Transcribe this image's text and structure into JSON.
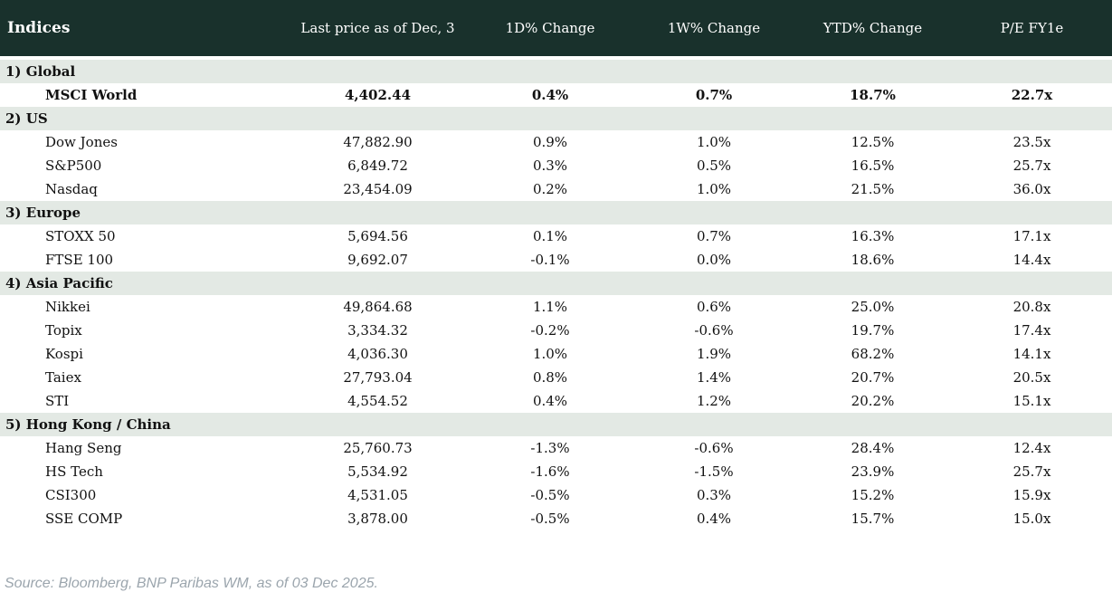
{
  "table": {
    "title": "Indices",
    "columns": {
      "price": "Last price as of Dec, 3",
      "d1": "1D% Change",
      "w1": "1W% Change",
      "ytd": "YTD% Change",
      "pe": "P/E FY1e"
    },
    "sections": [
      {
        "label": "1) Global",
        "rows": [
          {
            "name": "MSCI World",
            "bold": true,
            "price": "4,402.44",
            "d1": "0.4%",
            "w1": "0.7%",
            "ytd": "18.7%",
            "pe": "22.7x"
          }
        ]
      },
      {
        "label": "2) US",
        "rows": [
          {
            "name": "Dow Jones",
            "price": "47,882.90",
            "d1": "0.9%",
            "w1": "1.0%",
            "ytd": "12.5%",
            "pe": "23.5x"
          },
          {
            "name": "S&P500",
            "price": "6,849.72",
            "d1": "0.3%",
            "w1": "0.5%",
            "ytd": "16.5%",
            "pe": "25.7x"
          },
          {
            "name": "Nasdaq",
            "price": "23,454.09",
            "d1": "0.2%",
            "w1": "1.0%",
            "ytd": "21.5%",
            "pe": "36.0x"
          }
        ]
      },
      {
        "label": "3) Europe",
        "rows": [
          {
            "name": "STOXX 50",
            "price": "5,694.56",
            "d1": "0.1%",
            "w1": "0.7%",
            "ytd": "16.3%",
            "pe": "17.1x"
          },
          {
            "name": "FTSE 100",
            "price": "9,692.07",
            "d1": "-0.1%",
            "w1": "0.0%",
            "ytd": "18.6%",
            "pe": "14.4x"
          }
        ]
      },
      {
        "label": "4) Asia Pacific",
        "rows": [
          {
            "name": "Nikkei",
            "price": "49,864.68",
            "d1": "1.1%",
            "w1": "0.6%",
            "ytd": "25.0%",
            "pe": "20.8x"
          },
          {
            "name": "Topix",
            "price": "3,334.32",
            "d1": "-0.2%",
            "w1": "-0.6%",
            "ytd": "19.7%",
            "pe": "17.4x"
          },
          {
            "name": "Kospi",
            "price": "4,036.30",
            "d1": "1.0%",
            "w1": "1.9%",
            "ytd": "68.2%",
            "pe": "14.1x"
          },
          {
            "name": "Taiex",
            "price": "27,793.04",
            "d1": "0.8%",
            "w1": "1.4%",
            "ytd": "20.7%",
            "pe": "20.5x"
          },
          {
            "name": "STI",
            "price": "4,554.52",
            "d1": "0.4%",
            "w1": "1.2%",
            "ytd": "20.2%",
            "pe": "15.1x"
          }
        ]
      },
      {
        "label": "5) Hong Kong / China",
        "rows": [
          {
            "name": "Hang Seng",
            "price": "25,760.73",
            "d1": "-1.3%",
            "w1": "-0.6%",
            "ytd": "28.4%",
            "pe": "12.4x"
          },
          {
            "name": "HS Tech",
            "price": "5,534.92",
            "d1": "-1.6%",
            "w1": "-1.5%",
            "ytd": "23.9%",
            "pe": "25.7x"
          },
          {
            "name": "CSI300",
            "price": "4,531.05",
            "d1": "-0.5%",
            "w1": "0.3%",
            "ytd": "15.2%",
            "pe": "15.9x"
          },
          {
            "name": "SSE COMP",
            "price": "3,878.00",
            "d1": "-0.5%",
            "w1": "0.4%",
            "ytd": "15.7%",
            "pe": "15.0x"
          }
        ]
      }
    ]
  },
  "colors": {
    "header_bg": "#19312c",
    "section_bg": "#e3e9e4",
    "positive": "#0a8a1c",
    "negative": "#c1162f"
  },
  "footer": {
    "text": "Source: Bloomberg, BNP Paribas WM, as of 03 Dec 2025."
  }
}
